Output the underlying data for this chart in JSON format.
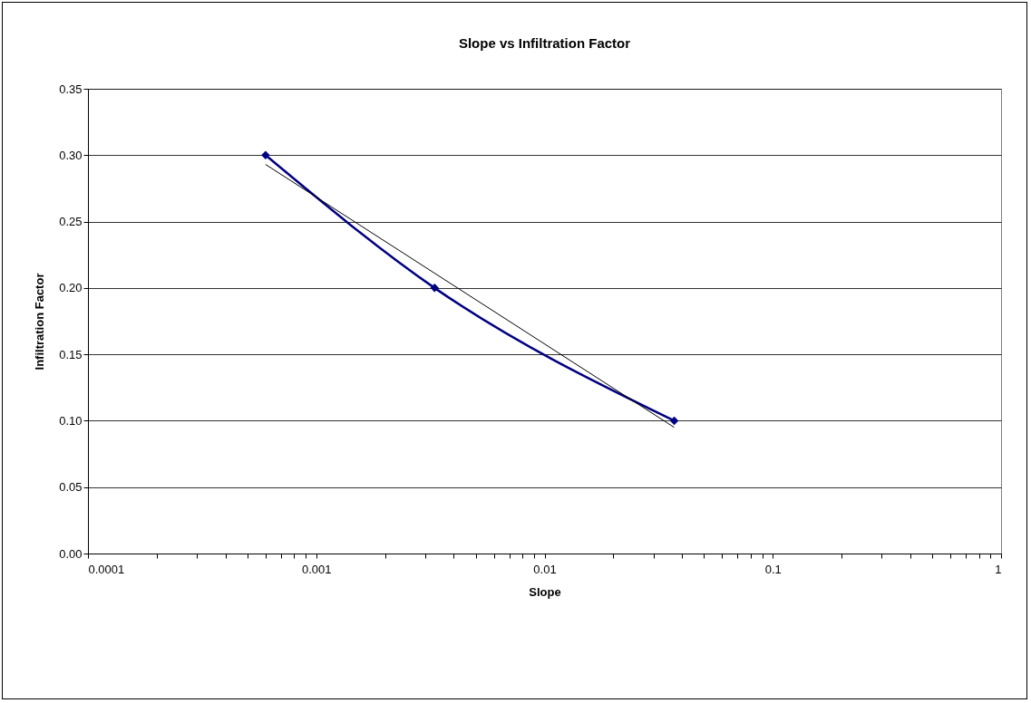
{
  "chart_data": {
    "type": "line",
    "title": "Slope vs Infiltration Factor",
    "xlabel": "Slope",
    "ylabel": "Infiltration Factor",
    "log": "x",
    "grid": "y",
    "marker": "diamond",
    "xlim": [
      0.0001,
      1
    ],
    "ylim": [
      0,
      0.35
    ],
    "xticks": [
      0.0001,
      {
        "value": 0.0002,
        "label": null
      },
      {
        "value": 0.0003,
        "label": null
      },
      {
        "value": 0.0004,
        "label": null
      },
      {
        "value": 0.0005,
        "label": null
      },
      {
        "value": 0.0006,
        "label": null
      },
      {
        "value": 0.0007,
        "label": null
      },
      {
        "value": 0.0008,
        "label": null
      },
      {
        "value": 0.0009,
        "label": null
      },
      0.001,
      {
        "value": 0.002,
        "label": null
      },
      {
        "value": 0.003,
        "label": null
      },
      {
        "value": 0.004,
        "label": null
      },
      {
        "value": 0.005,
        "label": null
      },
      {
        "value": 0.006,
        "label": null
      },
      {
        "value": 0.007,
        "label": null
      },
      {
        "value": 0.008,
        "label": null
      },
      {
        "value": 0.009,
        "label": null
      },
      0.01,
      {
        "value": 0.02,
        "label": null
      },
      {
        "value": 0.03,
        "label": null
      },
      {
        "value": 0.04,
        "label": null
      },
      {
        "value": 0.05,
        "label": null
      },
      {
        "value": 0.06,
        "label": null
      },
      {
        "value": 0.07,
        "label": null
      },
      {
        "value": 0.08,
        "label": null
      },
      {
        "value": 0.09,
        "label": null
      },
      0.1,
      {
        "value": 0.2,
        "label": null
      },
      {
        "value": 0.3,
        "label": null
      },
      {
        "value": 0.4,
        "label": null
      },
      {
        "value": 0.5,
        "label": null
      },
      {
        "value": 0.6,
        "label": null
      },
      {
        "value": 0.7,
        "label": null
      },
      {
        "value": 0.8,
        "label": null
      },
      {
        "value": 0.9,
        "label": null
      },
      1
    ],
    "yticks": [
      {
        "value": 0,
        "label": "0.00"
      },
      0.05,
      {
        "value": 0.1,
        "label": "0.10"
      },
      0.15,
      {
        "value": 0.2,
        "label": "0.20"
      },
      0.25,
      {
        "value": 0.3,
        "label": "0.30"
      },
      0.35
    ],
    "x": [
      0.0006,
      0.0033,
      0.037
    ],
    "series": [
      {
        "color": "#000080",
        "values": [
          0.3,
          0.2,
          0.1
        ]
      },
      {
        "type": "line",
        "color": "#000000",
        "marker": "none",
        "x": [
          0.0006,
          0.037
        ],
        "values": [
          0.293,
          0.095
        ]
      }
    ]
  }
}
